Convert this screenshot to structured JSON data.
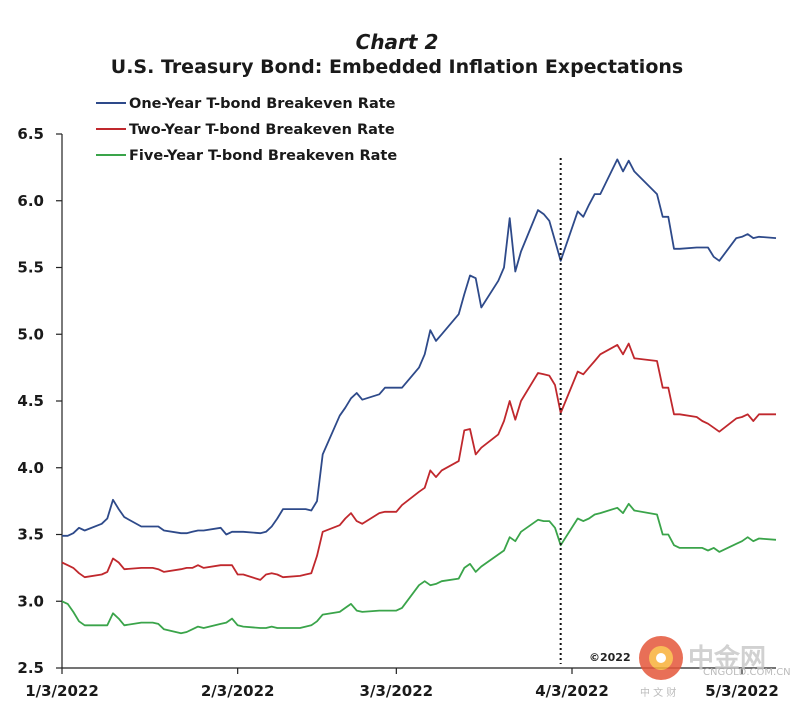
{
  "chart_data": {
    "type": "line",
    "title": "Chart 2",
    "subtitle": "U.S. Treasury Bond: Embedded Inflation Expectations",
    "ylim": [
      2.5,
      6.5
    ],
    "y_ticks": [
      "2.5",
      "3.0",
      "3.5",
      "4.0",
      "4.5",
      "5.0",
      "5.5",
      "6.0",
      "6.5"
    ],
    "x_tick_labels": [
      "1/3/2022",
      "2/3/2022",
      "3/3/2022",
      "4/3/2022",
      "5/3/2022"
    ],
    "x_tick_dates": [
      "2022-01-03",
      "2022-02-03",
      "2022-03-03",
      "2022-04-03",
      "2022-05-03"
    ],
    "xlim": [
      "2022-01-03",
      "2022-05-09"
    ],
    "marker_line_date": "2022-04-01",
    "legend_position": "top-left",
    "grid": false,
    "series": [
      {
        "name": "One-Year T-bond Breakeven Rate",
        "color": "#2e4a8a",
        "points": [
          [
            "2022-01-03",
            3.49
          ],
          [
            "2022-01-04",
            3.49
          ],
          [
            "2022-01-05",
            3.51
          ],
          [
            "2022-01-06",
            3.55
          ],
          [
            "2022-01-07",
            3.53
          ],
          [
            "2022-01-10",
            3.58
          ],
          [
            "2022-01-11",
            3.62
          ],
          [
            "2022-01-12",
            3.76
          ],
          [
            "2022-01-13",
            3.69
          ],
          [
            "2022-01-14",
            3.63
          ],
          [
            "2022-01-17",
            3.56
          ],
          [
            "2022-01-18",
            3.56
          ],
          [
            "2022-01-19",
            3.56
          ],
          [
            "2022-01-20",
            3.56
          ],
          [
            "2022-01-21",
            3.53
          ],
          [
            "2022-01-24",
            3.51
          ],
          [
            "2022-01-25",
            3.51
          ],
          [
            "2022-01-26",
            3.52
          ],
          [
            "2022-01-27",
            3.53
          ],
          [
            "2022-01-28",
            3.53
          ],
          [
            "2022-01-31",
            3.55
          ],
          [
            "2022-02-01",
            3.5
          ],
          [
            "2022-02-02",
            3.52
          ],
          [
            "2022-02-03",
            3.52
          ],
          [
            "2022-02-04",
            3.52
          ],
          [
            "2022-02-07",
            3.51
          ],
          [
            "2022-02-08",
            3.52
          ],
          [
            "2022-02-09",
            3.56
          ],
          [
            "2022-02-10",
            3.62
          ],
          [
            "2022-02-11",
            3.69
          ],
          [
            "2022-02-14",
            3.69
          ],
          [
            "2022-02-15",
            3.69
          ],
          [
            "2022-02-16",
            3.68
          ],
          [
            "2022-02-17",
            3.75
          ],
          [
            "2022-02-18",
            4.1
          ],
          [
            "2022-02-21",
            4.39
          ],
          [
            "2022-02-22",
            4.45
          ],
          [
            "2022-02-23",
            4.52
          ],
          [
            "2022-02-24",
            4.56
          ],
          [
            "2022-02-25",
            4.51
          ],
          [
            "2022-02-28",
            4.55
          ],
          [
            "2022-03-01",
            4.6
          ],
          [
            "2022-03-02",
            4.6
          ],
          [
            "2022-03-03",
            4.6
          ],
          [
            "2022-03-04",
            4.6
          ],
          [
            "2022-03-07",
            4.75
          ],
          [
            "2022-03-08",
            4.85
          ],
          [
            "2022-03-09",
            5.03
          ],
          [
            "2022-03-10",
            4.95
          ],
          [
            "2022-03-11",
            5.0
          ],
          [
            "2022-03-14",
            5.15
          ],
          [
            "2022-03-15",
            5.3
          ],
          [
            "2022-03-16",
            5.44
          ],
          [
            "2022-03-17",
            5.42
          ],
          [
            "2022-03-18",
            5.2
          ],
          [
            "2022-03-21",
            5.4
          ],
          [
            "2022-03-22",
            5.5
          ],
          [
            "2022-03-23",
            5.87
          ],
          [
            "2022-03-24",
            5.47
          ],
          [
            "2022-03-25",
            5.62
          ],
          [
            "2022-03-28",
            5.93
          ],
          [
            "2022-03-29",
            5.9
          ],
          [
            "2022-03-30",
            5.85
          ],
          [
            "2022-03-31",
            5.7
          ],
          [
            "2022-04-01",
            5.55
          ],
          [
            "2022-04-04",
            5.92
          ],
          [
            "2022-04-05",
            5.88
          ],
          [
            "2022-04-06",
            5.97
          ],
          [
            "2022-04-07",
            6.05
          ],
          [
            "2022-04-08",
            6.05
          ],
          [
            "2022-04-11",
            6.31
          ],
          [
            "2022-04-12",
            6.22
          ],
          [
            "2022-04-13",
            6.3
          ],
          [
            "2022-04-14",
            6.22
          ],
          [
            "2022-04-18",
            6.05
          ],
          [
            "2022-04-19",
            5.88
          ],
          [
            "2022-04-20",
            5.88
          ],
          [
            "2022-04-21",
            5.64
          ],
          [
            "2022-04-22",
            5.64
          ],
          [
            "2022-04-25",
            5.65
          ],
          [
            "2022-04-26",
            5.65
          ],
          [
            "2022-04-27",
            5.65
          ],
          [
            "2022-04-28",
            5.58
          ],
          [
            "2022-04-29",
            5.55
          ],
          [
            "2022-05-02",
            5.72
          ],
          [
            "2022-05-03",
            5.73
          ],
          [
            "2022-05-04",
            5.75
          ],
          [
            "2022-05-05",
            5.72
          ],
          [
            "2022-05-06",
            5.73
          ],
          [
            "2022-05-09",
            5.72
          ]
        ]
      },
      {
        "name": "Two-Year T-bond Breakeven Rate",
        "color": "#c0282d",
        "points": [
          [
            "2022-01-03",
            3.29
          ],
          [
            "2022-01-04",
            3.27
          ],
          [
            "2022-01-05",
            3.25
          ],
          [
            "2022-01-06",
            3.21
          ],
          [
            "2022-01-07",
            3.18
          ],
          [
            "2022-01-10",
            3.2
          ],
          [
            "2022-01-11",
            3.22
          ],
          [
            "2022-01-12",
            3.32
          ],
          [
            "2022-01-13",
            3.29
          ],
          [
            "2022-01-14",
            3.24
          ],
          [
            "2022-01-17",
            3.25
          ],
          [
            "2022-01-18",
            3.25
          ],
          [
            "2022-01-19",
            3.25
          ],
          [
            "2022-01-20",
            3.24
          ],
          [
            "2022-01-21",
            3.22
          ],
          [
            "2022-01-24",
            3.24
          ],
          [
            "2022-01-25",
            3.25
          ],
          [
            "2022-01-26",
            3.25
          ],
          [
            "2022-01-27",
            3.27
          ],
          [
            "2022-01-28",
            3.25
          ],
          [
            "2022-01-31",
            3.27
          ],
          [
            "2022-02-01",
            3.27
          ],
          [
            "2022-02-02",
            3.27
          ],
          [
            "2022-02-03",
            3.2
          ],
          [
            "2022-02-04",
            3.2
          ],
          [
            "2022-02-07",
            3.16
          ],
          [
            "2022-02-08",
            3.2
          ],
          [
            "2022-02-09",
            3.21
          ],
          [
            "2022-02-10",
            3.2
          ],
          [
            "2022-02-11",
            3.18
          ],
          [
            "2022-02-14",
            3.19
          ],
          [
            "2022-02-15",
            3.2
          ],
          [
            "2022-02-16",
            3.21
          ],
          [
            "2022-02-17",
            3.34
          ],
          [
            "2022-02-18",
            3.52
          ],
          [
            "2022-02-21",
            3.57
          ],
          [
            "2022-02-22",
            3.62
          ],
          [
            "2022-02-23",
            3.66
          ],
          [
            "2022-02-24",
            3.6
          ],
          [
            "2022-02-25",
            3.58
          ],
          [
            "2022-02-28",
            3.66
          ],
          [
            "2022-03-01",
            3.67
          ],
          [
            "2022-03-02",
            3.67
          ],
          [
            "2022-03-03",
            3.67
          ],
          [
            "2022-03-04",
            3.72
          ],
          [
            "2022-03-07",
            3.82
          ],
          [
            "2022-03-08",
            3.85
          ],
          [
            "2022-03-09",
            3.98
          ],
          [
            "2022-03-10",
            3.93
          ],
          [
            "2022-03-11",
            3.98
          ],
          [
            "2022-03-14",
            4.05
          ],
          [
            "2022-03-15",
            4.28
          ],
          [
            "2022-03-16",
            4.29
          ],
          [
            "2022-03-17",
            4.1
          ],
          [
            "2022-03-18",
            4.15
          ],
          [
            "2022-03-21",
            4.25
          ],
          [
            "2022-03-22",
            4.35
          ],
          [
            "2022-03-23",
            4.5
          ],
          [
            "2022-03-24",
            4.36
          ],
          [
            "2022-03-25",
            4.5
          ],
          [
            "2022-03-28",
            4.71
          ],
          [
            "2022-03-29",
            4.7
          ],
          [
            "2022-03-30",
            4.69
          ],
          [
            "2022-03-31",
            4.62
          ],
          [
            "2022-04-01",
            4.41
          ],
          [
            "2022-04-04",
            4.72
          ],
          [
            "2022-04-05",
            4.7
          ],
          [
            "2022-04-06",
            4.75
          ],
          [
            "2022-04-07",
            4.8
          ],
          [
            "2022-04-08",
            4.85
          ],
          [
            "2022-04-11",
            4.92
          ],
          [
            "2022-04-12",
            4.85
          ],
          [
            "2022-04-13",
            4.93
          ],
          [
            "2022-04-14",
            4.82
          ],
          [
            "2022-04-18",
            4.8
          ],
          [
            "2022-04-19",
            4.6
          ],
          [
            "2022-04-20",
            4.6
          ],
          [
            "2022-04-21",
            4.4
          ],
          [
            "2022-04-22",
            4.4
          ],
          [
            "2022-04-25",
            4.38
          ],
          [
            "2022-04-26",
            4.35
          ],
          [
            "2022-04-27",
            4.33
          ],
          [
            "2022-04-28",
            4.3
          ],
          [
            "2022-04-29",
            4.27
          ],
          [
            "2022-05-02",
            4.37
          ],
          [
            "2022-05-03",
            4.38
          ],
          [
            "2022-05-04",
            4.4
          ],
          [
            "2022-05-05",
            4.35
          ],
          [
            "2022-05-06",
            4.4
          ],
          [
            "2022-05-09",
            4.4
          ]
        ]
      },
      {
        "name": "Five-Year T-bond Breakeven Rate",
        "color": "#3aa44a",
        "points": [
          [
            "2022-01-03",
            3.0
          ],
          [
            "2022-01-04",
            2.98
          ],
          [
            "2022-01-05",
            2.92
          ],
          [
            "2022-01-06",
            2.85
          ],
          [
            "2022-01-07",
            2.82
          ],
          [
            "2022-01-10",
            2.82
          ],
          [
            "2022-01-11",
            2.82
          ],
          [
            "2022-01-12",
            2.91
          ],
          [
            "2022-01-13",
            2.87
          ],
          [
            "2022-01-14",
            2.82
          ],
          [
            "2022-01-17",
            2.84
          ],
          [
            "2022-01-18",
            2.84
          ],
          [
            "2022-01-19",
            2.84
          ],
          [
            "2022-01-20",
            2.83
          ],
          [
            "2022-01-21",
            2.79
          ],
          [
            "2022-01-24",
            2.76
          ],
          [
            "2022-01-25",
            2.77
          ],
          [
            "2022-01-26",
            2.79
          ],
          [
            "2022-01-27",
            2.81
          ],
          [
            "2022-01-28",
            2.8
          ],
          [
            "2022-01-31",
            2.83
          ],
          [
            "2022-02-01",
            2.84
          ],
          [
            "2022-02-02",
            2.87
          ],
          [
            "2022-02-03",
            2.82
          ],
          [
            "2022-02-04",
            2.81
          ],
          [
            "2022-02-07",
            2.8
          ],
          [
            "2022-02-08",
            2.8
          ],
          [
            "2022-02-09",
            2.81
          ],
          [
            "2022-02-10",
            2.8
          ],
          [
            "2022-02-11",
            2.8
          ],
          [
            "2022-02-14",
            2.8
          ],
          [
            "2022-02-15",
            2.81
          ],
          [
            "2022-02-16",
            2.82
          ],
          [
            "2022-02-17",
            2.85
          ],
          [
            "2022-02-18",
            2.9
          ],
          [
            "2022-02-21",
            2.92
          ],
          [
            "2022-02-22",
            2.95
          ],
          [
            "2022-02-23",
            2.98
          ],
          [
            "2022-02-24",
            2.93
          ],
          [
            "2022-02-25",
            2.92
          ],
          [
            "2022-02-28",
            2.93
          ],
          [
            "2022-03-01",
            2.93
          ],
          [
            "2022-03-02",
            2.93
          ],
          [
            "2022-03-03",
            2.93
          ],
          [
            "2022-03-04",
            2.95
          ],
          [
            "2022-03-07",
            3.12
          ],
          [
            "2022-03-08",
            3.15
          ],
          [
            "2022-03-09",
            3.12
          ],
          [
            "2022-03-10",
            3.13
          ],
          [
            "2022-03-11",
            3.15
          ],
          [
            "2022-03-14",
            3.17
          ],
          [
            "2022-03-15",
            3.25
          ],
          [
            "2022-03-16",
            3.28
          ],
          [
            "2022-03-17",
            3.22
          ],
          [
            "2022-03-18",
            3.26
          ],
          [
            "2022-03-21",
            3.35
          ],
          [
            "2022-03-22",
            3.38
          ],
          [
            "2022-03-23",
            3.48
          ],
          [
            "2022-03-24",
            3.45
          ],
          [
            "2022-03-25",
            3.52
          ],
          [
            "2022-03-28",
            3.61
          ],
          [
            "2022-03-29",
            3.6
          ],
          [
            "2022-03-30",
            3.6
          ],
          [
            "2022-03-31",
            3.55
          ],
          [
            "2022-04-01",
            3.42
          ],
          [
            "2022-04-04",
            3.62
          ],
          [
            "2022-04-05",
            3.6
          ],
          [
            "2022-04-06",
            3.62
          ],
          [
            "2022-04-07",
            3.65
          ],
          [
            "2022-04-08",
            3.66
          ],
          [
            "2022-04-11",
            3.7
          ],
          [
            "2022-04-12",
            3.66
          ],
          [
            "2022-04-13",
            3.73
          ],
          [
            "2022-04-14",
            3.68
          ],
          [
            "2022-04-18",
            3.65
          ],
          [
            "2022-04-19",
            3.5
          ],
          [
            "2022-04-20",
            3.5
          ],
          [
            "2022-04-21",
            3.42
          ],
          [
            "2022-04-22",
            3.4
          ],
          [
            "2022-04-25",
            3.4
          ],
          [
            "2022-04-26",
            3.4
          ],
          [
            "2022-04-27",
            3.38
          ],
          [
            "2022-04-28",
            3.4
          ],
          [
            "2022-04-29",
            3.37
          ],
          [
            "2022-05-02",
            3.43
          ],
          [
            "2022-05-03",
            3.45
          ],
          [
            "2022-05-04",
            3.48
          ],
          [
            "2022-05-05",
            3.45
          ],
          [
            "2022-05-06",
            3.47
          ],
          [
            "2022-05-09",
            3.46
          ]
        ]
      }
    ]
  },
  "copyright": "©2022",
  "watermark": {
    "brand": "中金网",
    "sub": "中 文 财",
    "url": "CNGOLD.COM.CN"
  }
}
